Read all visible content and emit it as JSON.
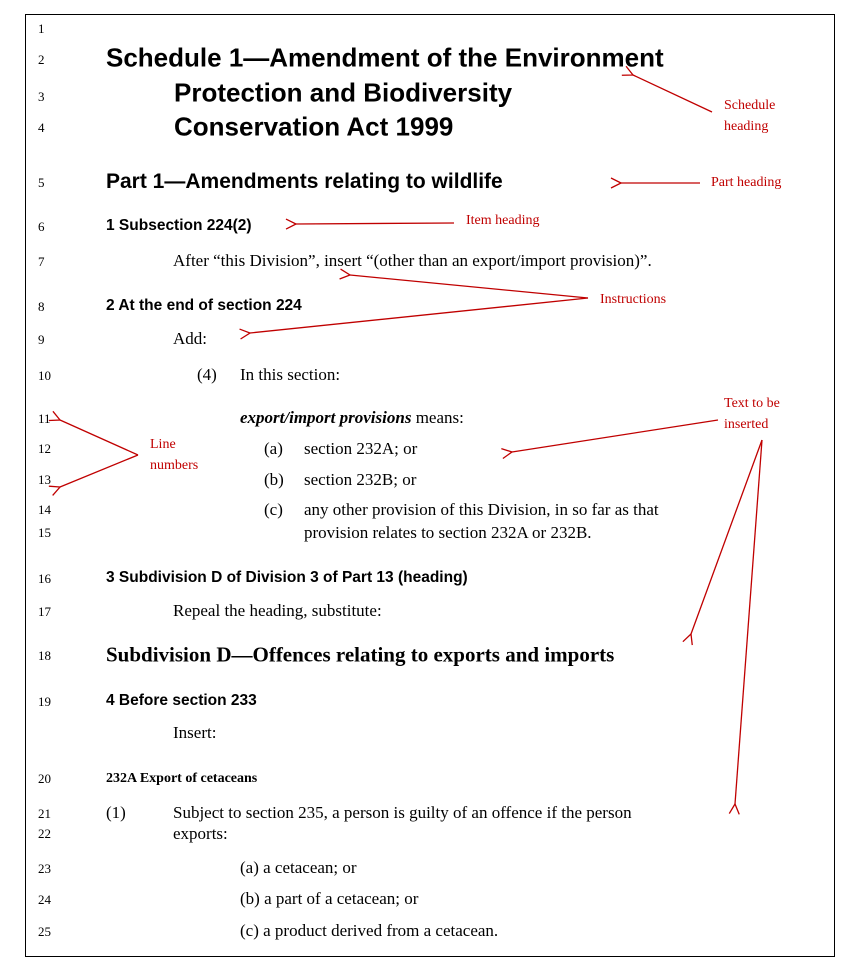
{
  "line_numbers": [
    "1",
    "2",
    "3",
    "4",
    "5",
    "6",
    "7",
    "8",
    "9",
    "10",
    "11",
    "12",
    "13",
    "14",
    "15",
    "16",
    "17",
    "18",
    "19",
    "20",
    "21",
    "22",
    "23",
    "24",
    "25"
  ],
  "schedule_heading": {
    "line1": "Schedule 1—Amendment of the Environment",
    "line2": "Protection and Biodiversity",
    "line3": "Conservation Act 1999"
  },
  "part_heading": "Part 1—Amendments relating to wildlife",
  "item1": {
    "heading": "1 Subsection 224(2)",
    "instruction": "After “this Division”, insert “(other than an export/import provision)”."
  },
  "item2": {
    "heading": "2 At the end of section 224",
    "instruction": "Add:",
    "sub_number": "(4)",
    "sub_text": "In this section:",
    "definition_term": "export/import provisions",
    "definition_rest": " means:",
    "paras": [
      {
        "label": "(a)",
        "text": "section 232A; or"
      },
      {
        "label": "(b)",
        "text": "section 232B; or"
      },
      {
        "label": "(c)",
        "text": "any other provision of this Division, in so far as that",
        "text2": "provision relates to section 232A or 232B."
      }
    ]
  },
  "item3": {
    "heading": "3 Subdivision D of Division 3 of Part 13 (heading)",
    "instruction": "Repeal the heading, substitute:",
    "subdivision_heading": "Subdivision D—Offences relating to exports and imports"
  },
  "item4": {
    "heading": "4 Before section 233",
    "instruction": "Insert:",
    "section_heading": "232A Export of cetaceans",
    "sub_number": "(1)",
    "sub_text1": "Subject to section 235, a person is guilty of an offence if the person",
    "sub_text2": "exports:",
    "paras": [
      "(a) a cetacean; or",
      "(b) a part of a cetacean; or",
      "(c) a product derived from a cetacean."
    ]
  },
  "annotations": {
    "schedule_heading": [
      "Schedule",
      "heading"
    ],
    "part_heading": "Part heading",
    "item_heading": "Item heading",
    "instructions": "Instructions",
    "line_numbers": [
      "Line",
      "numbers"
    ],
    "text_to_be_inserted": [
      "Text to be",
      "inserted"
    ]
  },
  "colors": {
    "annotation": "#c00000",
    "text": "#000000"
  }
}
